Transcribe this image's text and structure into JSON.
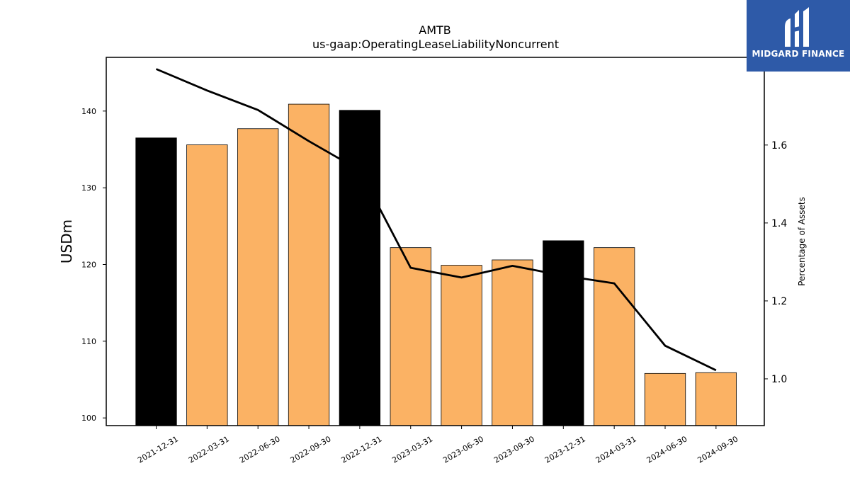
{
  "chart_data": {
    "type": "bar+line",
    "title": "AMTB",
    "subtitle": "us-gaap:OperatingLeaseLiabilityNoncurrent",
    "ylabel": "USDm",
    "y2label": "Percentage of Assets",
    "categories": [
      "2021-12-31",
      "2022-03-31",
      "2022-06-30",
      "2022-09-30",
      "2022-12-31",
      "2023-03-31",
      "2023-06-30",
      "2023-09-30",
      "2023-12-31",
      "2024-03-31",
      "2024-06-30",
      "2024-09-30"
    ],
    "series": [
      {
        "kind": "bar",
        "axis": "left",
        "values": [
          136.5,
          135.6,
          137.7,
          140.9,
          140.1,
          122.2,
          119.9,
          120.6,
          123.1,
          122.2,
          105.8,
          105.9
        ],
        "colors": [
          "#000000",
          "#fbb264",
          "#fbb264",
          "#fbb264",
          "#000000",
          "#fbb264",
          "#fbb264",
          "#fbb264",
          "#000000",
          "#fbb264",
          "#fbb264",
          "#fbb264"
        ]
      },
      {
        "kind": "line",
        "axis": "right",
        "color": "#000000",
        "values": [
          1.795,
          1.74,
          1.69,
          1.61,
          1.535,
          1.285,
          1.26,
          1.29,
          1.265,
          1.245,
          1.085,
          1.022
        ]
      }
    ],
    "ylim": [
      99,
      147
    ],
    "yticks": [
      100,
      110,
      120,
      130,
      140
    ],
    "y2lim": [
      0.88,
      1.825
    ],
    "y2ticks": [
      "1.0",
      "1.2",
      "1.4",
      "1.6"
    ],
    "y2tick_values": [
      1.0,
      1.2,
      1.4,
      1.6
    ],
    "grid": false,
    "legend": "none"
  },
  "logo": {
    "text": "MIDGARD FINANCE",
    "bg_color": "#2e5aa8"
  }
}
